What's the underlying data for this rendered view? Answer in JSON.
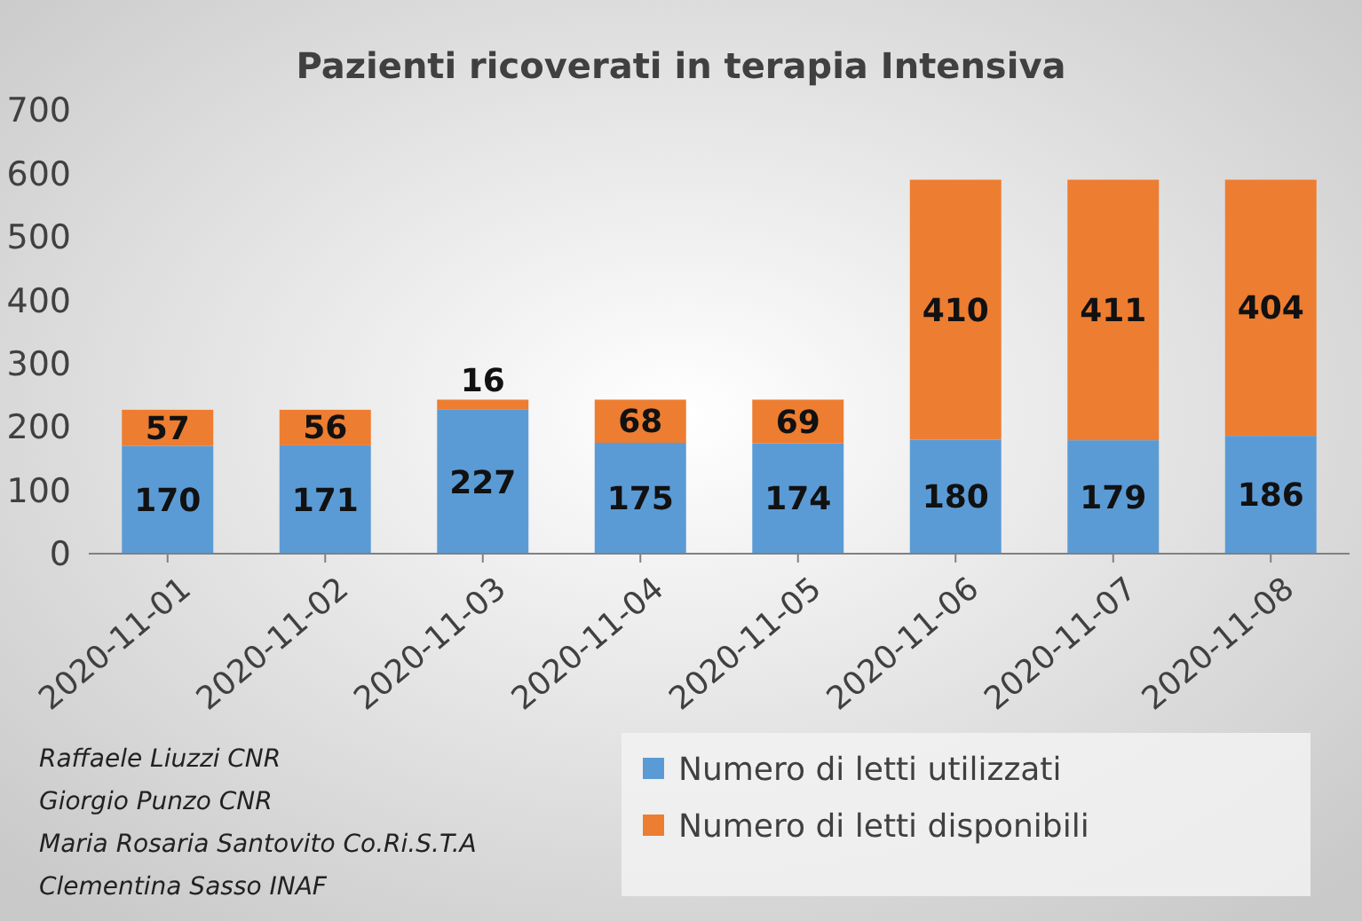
{
  "chart_data": {
    "type": "bar",
    "title": "Pazienti ricoverati in terapia Intensiva",
    "categories": [
      "2020-11-01",
      "2020-11-02",
      "2020-11-03",
      "2020-11-04",
      "2020-11-05",
      "2020-11-06",
      "2020-11-07",
      "2020-11-08"
    ],
    "series": [
      {
        "name": "Numero di letti utilizzati",
        "color": "#5b9bd5",
        "values": [
          170,
          171,
          227,
          175,
          174,
          180,
          179,
          186
        ]
      },
      {
        "name": "Numero di letti disponibili",
        "color": "#ed7d31",
        "values": [
          57,
          56,
          16,
          68,
          69,
          410,
          411,
          404
        ]
      }
    ],
    "stacked": true,
    "data_labels": true,
    "ylim": [
      0,
      700
    ],
    "yticks": [
      0,
      100,
      200,
      300,
      400,
      500,
      600,
      700
    ],
    "grid": false,
    "legend": "bottom right",
    "annotations": [
      "Raffaele Liuzzi CNR",
      "Giorgio Punzo CNR",
      "Maria Rosaria Santovito Co.Ri.S.T.A",
      "Clementina Sasso INAF"
    ]
  }
}
